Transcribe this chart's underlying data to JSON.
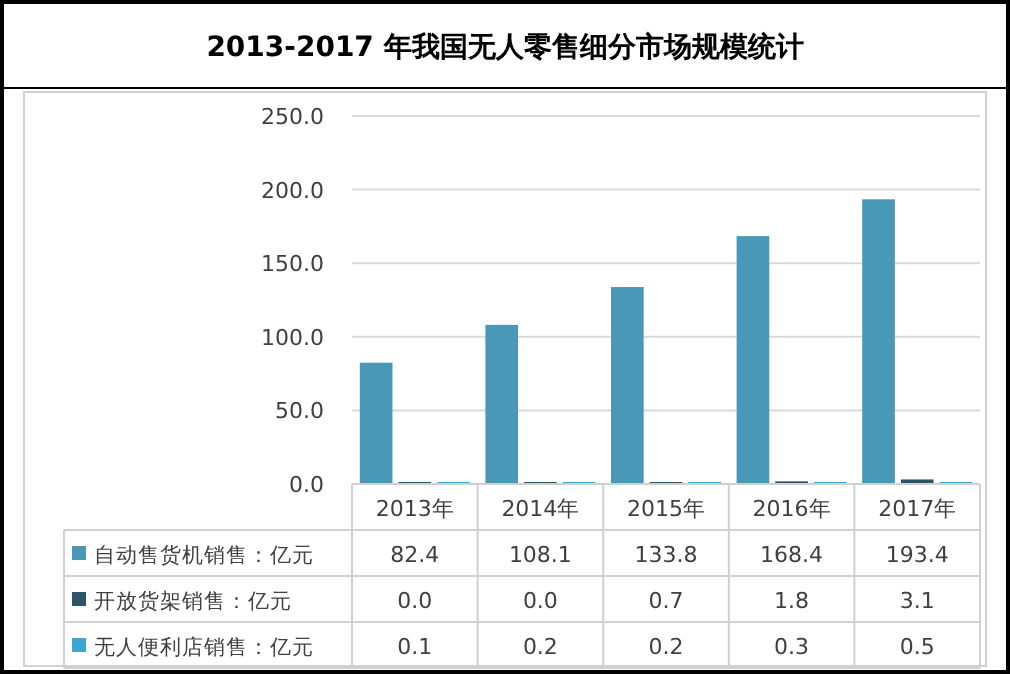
{
  "chart_data": {
    "type": "bar",
    "title": "2013-2017 年我国无人零售细分市场规模统计",
    "categories": [
      "2013年",
      "2014年",
      "2015年",
      "2016年",
      "2017年"
    ],
    "series": [
      {
        "name": "自动售货机销售：亿元",
        "color": "#4a98b8",
        "values": [
          82.4,
          108.1,
          133.8,
          168.4,
          193.4
        ],
        "value_labels": [
          "82.4",
          "108.1",
          "133.8",
          "168.4",
          "193.4"
        ]
      },
      {
        "name": "开放货架销售：亿元",
        "color": "#2f5468",
        "values": [
          0.0,
          0.0,
          0.7,
          1.8,
          3.1
        ],
        "value_labels": [
          "0.0",
          "0.0",
          "0.7",
          "1.8",
          "3.1"
        ]
      },
      {
        "name": "无人便利店销售：亿元",
        "color": "#3ea6d4",
        "values": [
          0.1,
          0.2,
          0.2,
          0.3,
          0.5
        ],
        "value_labels": [
          "0.1",
          "0.2",
          "0.2",
          "0.3",
          "0.5"
        ]
      }
    ],
    "ylim": [
      0,
      250
    ],
    "yticks": [
      {
        "value": 0,
        "label": "0.0"
      },
      {
        "value": 50,
        "label": "50.0"
      },
      {
        "value": 100,
        "label": "100.0"
      },
      {
        "value": 150,
        "label": "150.0"
      },
      {
        "value": 200,
        "label": "200.0"
      },
      {
        "value": 250,
        "label": "250.0"
      }
    ],
    "grid": "y",
    "legend": "bottom left"
  }
}
